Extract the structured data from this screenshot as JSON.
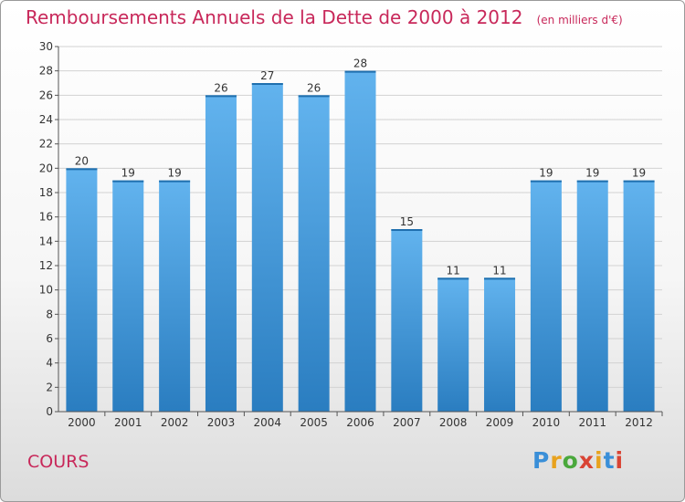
{
  "header": {
    "title": "Remboursements Annuels de la Dette de 2000 à 2012",
    "unit": "(en milliers d'€)"
  },
  "footer": {
    "commune": "COURS",
    "logo_text": "Proxiti",
    "logo_colors": [
      "#3a8fd8",
      "#e8a21e",
      "#4aa83c",
      "#d94434",
      "#e8a21e",
      "#3a8fd8",
      "#d94434"
    ]
  },
  "colors": {
    "title": "#c8285a",
    "bar_light": "#62b3ee",
    "bar_dark": "#2a7dc0",
    "grid": "#d2d2d2",
    "axis_text": "#333333"
  },
  "chart_data": {
    "type": "bar",
    "title": "Remboursements Annuels de la Dette de 2000 à 2012",
    "subtitle": "(en milliers d'€)",
    "xlabel": "",
    "ylabel": "",
    "categories": [
      "2000",
      "2001",
      "2002",
      "2003",
      "2004",
      "2005",
      "2006",
      "2007",
      "2008",
      "2009",
      "2010",
      "2011",
      "2012"
    ],
    "values": [
      20,
      19,
      19,
      26,
      27,
      26,
      28,
      15,
      11,
      11,
      19,
      19,
      19
    ],
    "ylim": [
      0,
      30
    ],
    "yticks": [
      0,
      2,
      4,
      6,
      8,
      10,
      12,
      14,
      16,
      18,
      20,
      22,
      24,
      26,
      28,
      30
    ],
    "grid": true,
    "legend": "none"
  }
}
